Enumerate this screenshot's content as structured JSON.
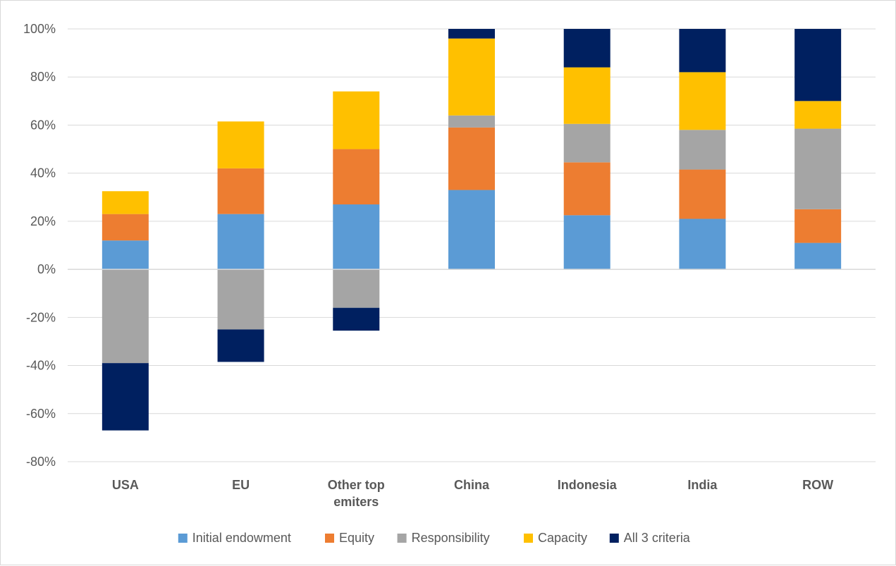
{
  "chart_data": {
    "type": "bar",
    "stacked": true,
    "title": "",
    "xlabel": "",
    "ylabel": "",
    "ylim": [
      -0.8,
      1.0
    ],
    "yticks": [
      1.0,
      0.8,
      0.6,
      0.4,
      0.2,
      0.0,
      -0.2,
      -0.4,
      -0.6,
      -0.8
    ],
    "ytick_labels": [
      "100%",
      "80%",
      "60%",
      "40%",
      "20%",
      "0%",
      "-20%",
      "-40%",
      "-60%",
      "-80%"
    ],
    "grid": true,
    "legend_position": "bottom",
    "categories": [
      [
        "USA"
      ],
      [
        "EU"
      ],
      [
        "Other top",
        "emiters"
      ],
      [
        "China"
      ],
      [
        "Indonesia"
      ],
      [
        "India"
      ],
      [
        "ROW"
      ]
    ],
    "series": [
      {
        "name": "Initial endowment",
        "color": "#5b9bd5",
        "values": [
          0.12,
          0.23,
          0.27,
          0.33,
          0.225,
          0.21,
          0.11
        ]
      },
      {
        "name": "Equity",
        "color": "#ed7d31",
        "values": [
          0.11,
          0.19,
          0.23,
          0.26,
          0.22,
          0.205,
          0.14
        ]
      },
      {
        "name": "Responsibility",
        "color": "#a5a5a5",
        "values": [
          -0.39,
          -0.25,
          -0.16,
          0.05,
          0.16,
          0.165,
          0.335
        ]
      },
      {
        "name": "Capacity",
        "color": "#ffc000",
        "values": [
          0.095,
          0.195,
          0.24,
          0.32,
          0.235,
          0.24,
          0.115
        ]
      },
      {
        "name": "All 3 criteria",
        "color": "#002060",
        "values": [
          -0.28,
          -0.135,
          -0.095,
          0.04,
          0.16,
          0.18,
          0.3
        ]
      }
    ]
  }
}
